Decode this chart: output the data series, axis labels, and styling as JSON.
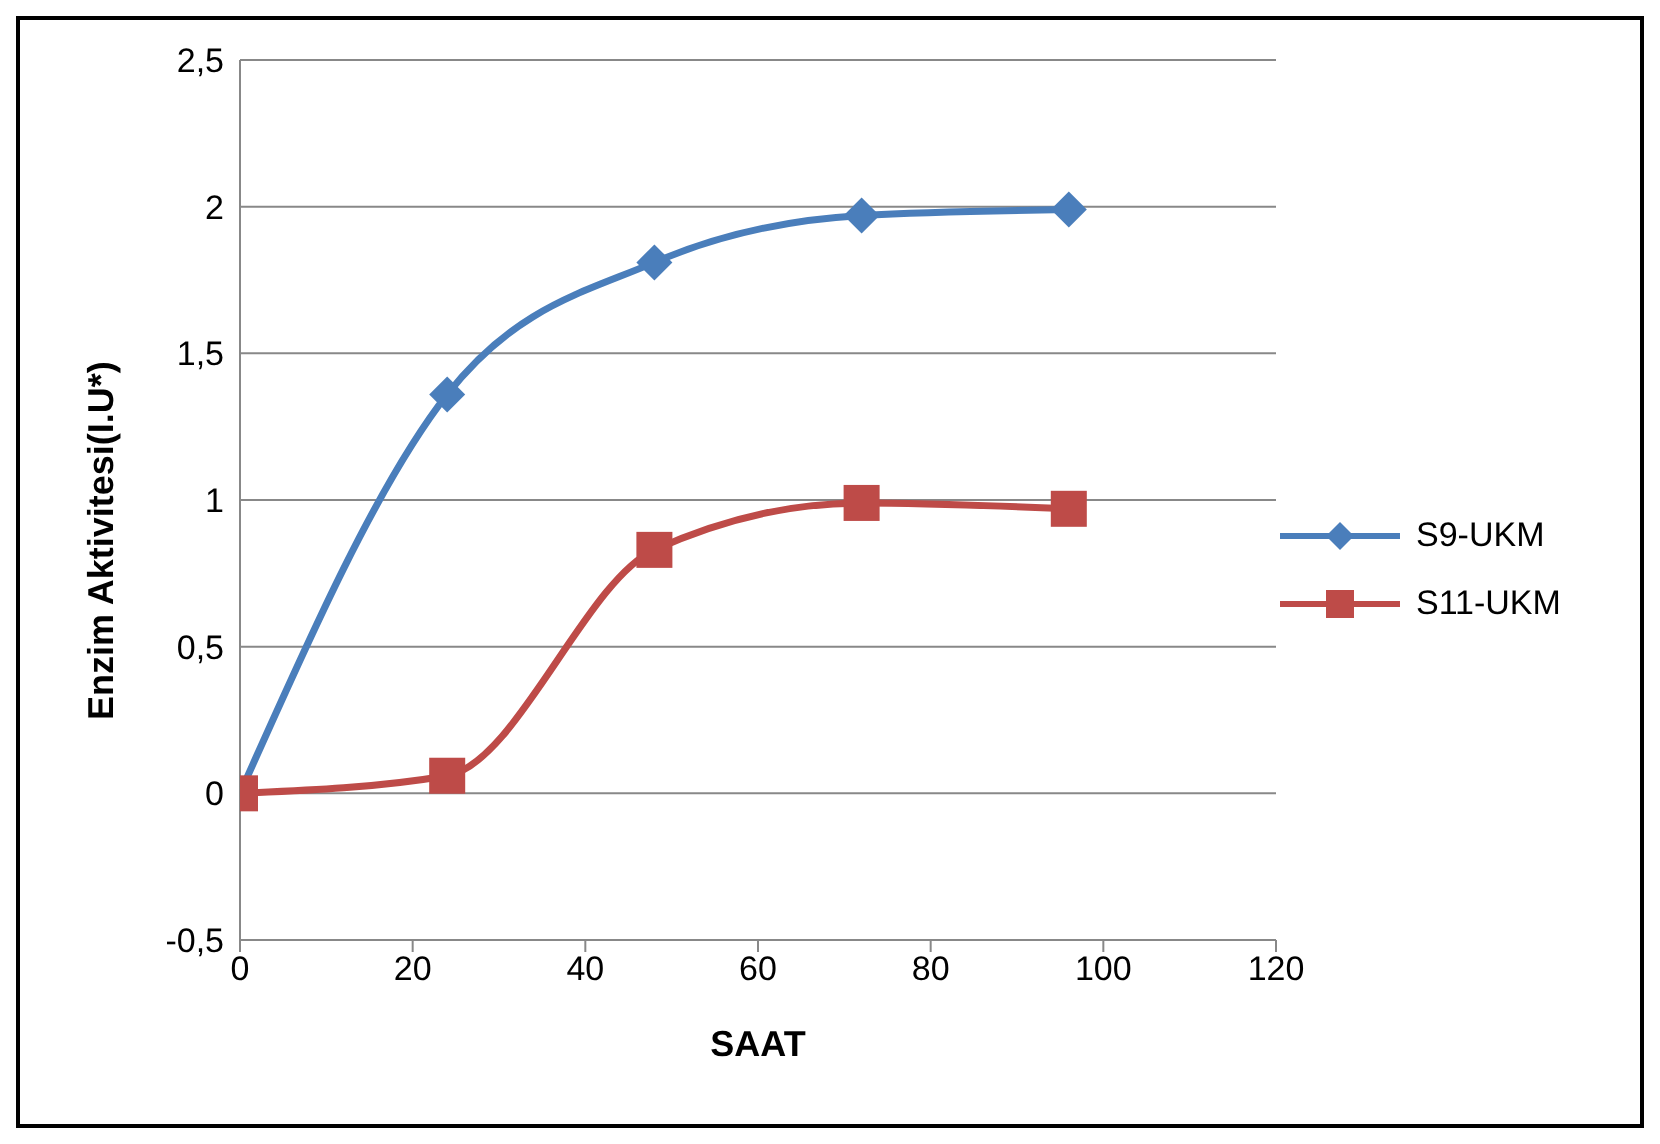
{
  "chart_data": {
    "type": "line",
    "xlabel": "SAAT",
    "ylabel": "Enzim Aktivitesi(I.U*)",
    "x": [
      0,
      24,
      48,
      72,
      96
    ],
    "series": [
      {
        "name": "S9-UKM",
        "color": "#4a7ebb",
        "marker": "diamond",
        "values": [
          0,
          1.36,
          1.81,
          1.97,
          1.99
        ]
      },
      {
        "name": "S11-UKM",
        "color": "#be4b48",
        "marker": "square",
        "values": [
          0,
          0.06,
          0.83,
          0.99,
          0.97
        ]
      }
    ],
    "xlim": [
      0,
      120
    ],
    "xticks": [
      0,
      20,
      40,
      60,
      80,
      100,
      120
    ],
    "ylim": [
      -0.5,
      2.5
    ],
    "yticks": [
      {
        "value": -0.5,
        "label": "-0,5"
      },
      0,
      {
        "value": 0.5,
        "label": "0,5"
      },
      1,
      {
        "value": 1.5,
        "label": "1,5"
      },
      2,
      {
        "value": 2.5,
        "label": "2,5"
      }
    ],
    "grid": "y",
    "legend": "right",
    "line_style": "solid"
  }
}
